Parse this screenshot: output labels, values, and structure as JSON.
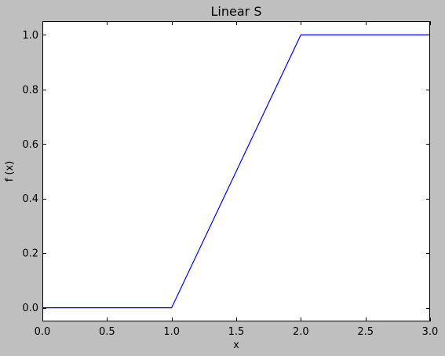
{
  "chart_data": {
    "type": "line",
    "title": "Linear S",
    "xlabel": "x",
    "ylabel": "f (x)",
    "xlim": [
      0.0,
      3.0
    ],
    "ylim": [
      -0.05,
      1.05
    ],
    "xticks": [
      0.0,
      0.5,
      1.0,
      1.5,
      2.0,
      2.5,
      3.0
    ],
    "xtick_labels": [
      "0.0",
      "0.5",
      "1.0",
      "1.5",
      "2.0",
      "2.5",
      "3.0"
    ],
    "yticks": [
      0.0,
      0.2,
      0.4,
      0.6,
      0.8,
      1.0
    ],
    "ytick_labels": [
      "0.0",
      "0.2",
      "0.4",
      "0.6",
      "0.8",
      "1.0"
    ],
    "grid": false,
    "series": [
      {
        "x": [
          0.0,
          1.0,
          2.0,
          3.0
        ],
        "y": [
          0.0,
          0.0,
          1.0,
          1.0
        ],
        "color": "#0000ff"
      }
    ],
    "colors": {
      "figure_background": "#bfbfbf",
      "axes_background": "#ffffff",
      "line": "#0000ff"
    }
  }
}
